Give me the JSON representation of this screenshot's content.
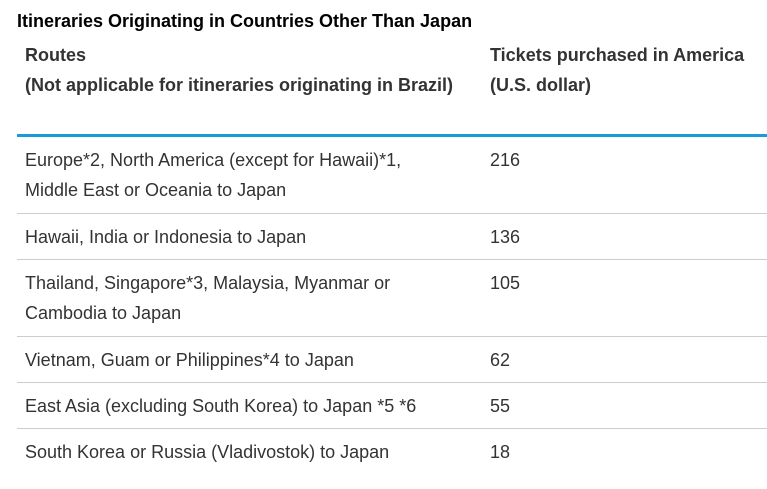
{
  "title": "Itineraries Originating in Countries Other Than Japan",
  "header": {
    "route_line1": "Routes",
    "route_line2": "(Not applicable for itineraries originating in Brazil)",
    "price_line1": "Tickets purchased in America",
    "price_line2": "(U.S. dollar)"
  },
  "rows": [
    {
      "route_line1": "Europe*2, North America (except for Hawaii)*1,",
      "route_line2": "Middle East or Oceania to Japan",
      "price": "216"
    },
    {
      "route_line1": "Hawaii, India or Indonesia to Japan",
      "route_line2": "",
      "price": "136"
    },
    {
      "route_line1": "Thailand, Singapore*3, Malaysia, Myanmar or",
      "route_line2": "Cambodia to Japan",
      "price": "105"
    },
    {
      "route_line1": "Vietnam, Guam or Philippines*4 to Japan",
      "route_line2": "",
      "price": "62"
    },
    {
      "route_line1": "East Asia (excluding South Korea) to Japan *5 *6",
      "route_line2": "",
      "price": "55"
    },
    {
      "route_line1": "South Korea or Russia (Vladivostok) to Japan",
      "route_line2": "",
      "price": "18"
    }
  ]
}
